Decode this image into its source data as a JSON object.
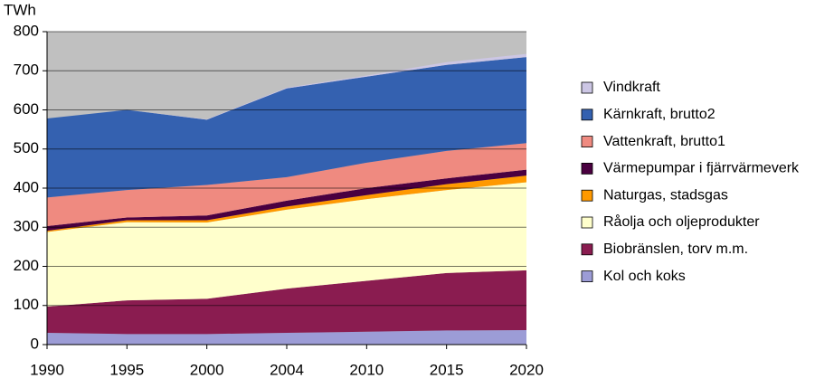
{
  "chart_data": {
    "type": "stacked-area",
    "y_label": "TWh",
    "categories": [
      "1990",
      "1995",
      "2000",
      "2004",
      "2010",
      "2015",
      "2020"
    ],
    "ylim": [
      0,
      800
    ],
    "yticks": [
      0,
      100,
      200,
      300,
      400,
      500,
      600,
      700,
      800
    ],
    "grid": true,
    "plot_background": "#c0c0c0",
    "legend": "right",
    "series": [
      {
        "name": "Kol och koks",
        "color": "#9c9cd6",
        "values": [
          30,
          27,
          27,
          30,
          33,
          36,
          37
        ]
      },
      {
        "name": "Biobränslen, torv m.m.",
        "color": "#8a1c50",
        "values": [
          67,
          86,
          90,
          113,
          130,
          147,
          153
        ]
      },
      {
        "name": "Råolja och oljeprodukter",
        "color": "#ffffcc",
        "values": [
          191,
          200,
          195,
          202,
          209,
          212,
          225
        ]
      },
      {
        "name": "Naturgas, stadsgas",
        "color": "#ff9900",
        "values": [
          3,
          5,
          6,
          8,
          10,
          15,
          17
        ]
      },
      {
        "name": "Värmepumpar i fjärrvärmeverk",
        "color": "#4a0040",
        "values": [
          12,
          7,
          12,
          15,
          18,
          15,
          15
        ]
      },
      {
        "name": "Vattenkraft, brutto1",
        "color": "#ef8a80",
        "values": [
          73,
          70,
          78,
          60,
          65,
          70,
          68
        ]
      },
      {
        "name": "Kärnkraft, brutto2",
        "color": "#3461b0",
        "values": [
          202,
          205,
          167,
          227,
          220,
          220,
          220
        ]
      },
      {
        "name": "Vindkraft",
        "color": "#ccc6e4",
        "values": [
          0,
          0,
          1,
          2,
          3,
          7,
          8
        ]
      }
    ]
  }
}
